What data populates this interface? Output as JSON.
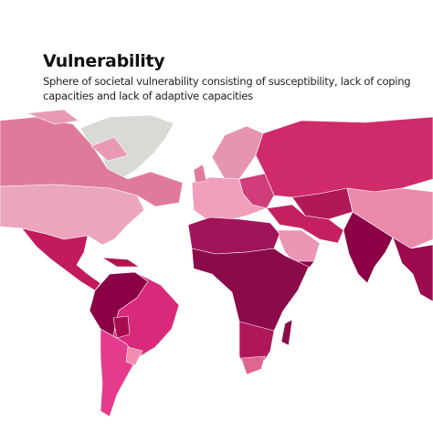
{
  "header": {
    "title": "Vulnerability",
    "subtitle_lines": [
      "Sphere of societal vulnerability consisting of susceptibility, lack of coping",
      "capacities and lack of adaptive capacities"
    ]
  }
}
